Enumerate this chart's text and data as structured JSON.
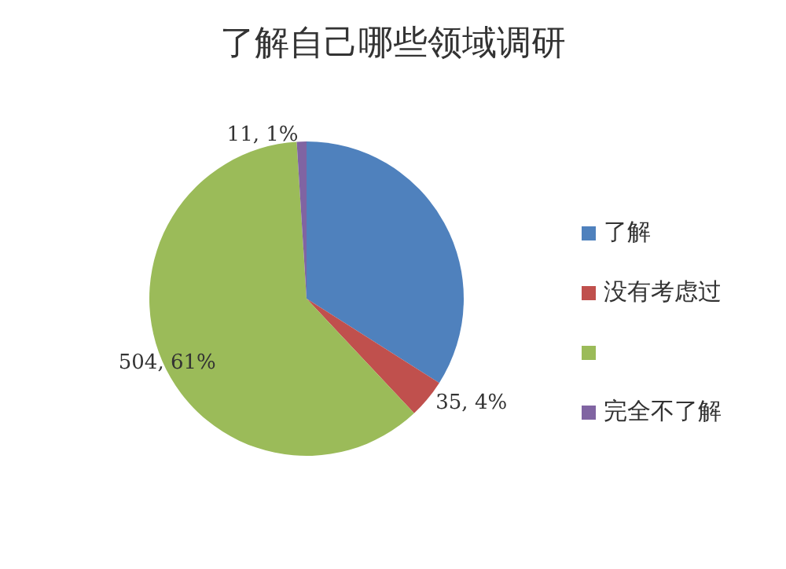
{
  "chart_data": {
    "type": "pie",
    "title": "了解自己哪些领域调研",
    "categories": [
      "了解",
      "没有考虑过",
      null,
      "完全不了解"
    ],
    "values": [
      34,
      4,
      61,
      1
    ],
    "colors": [
      "#4f81bd",
      "#c0504d",
      "#9bbb59",
      "#8064a2"
    ],
    "value_labels": [
      null,
      "35, 4%",
      "504, 61%",
      "11, 1%"
    ],
    "legend": "right"
  }
}
